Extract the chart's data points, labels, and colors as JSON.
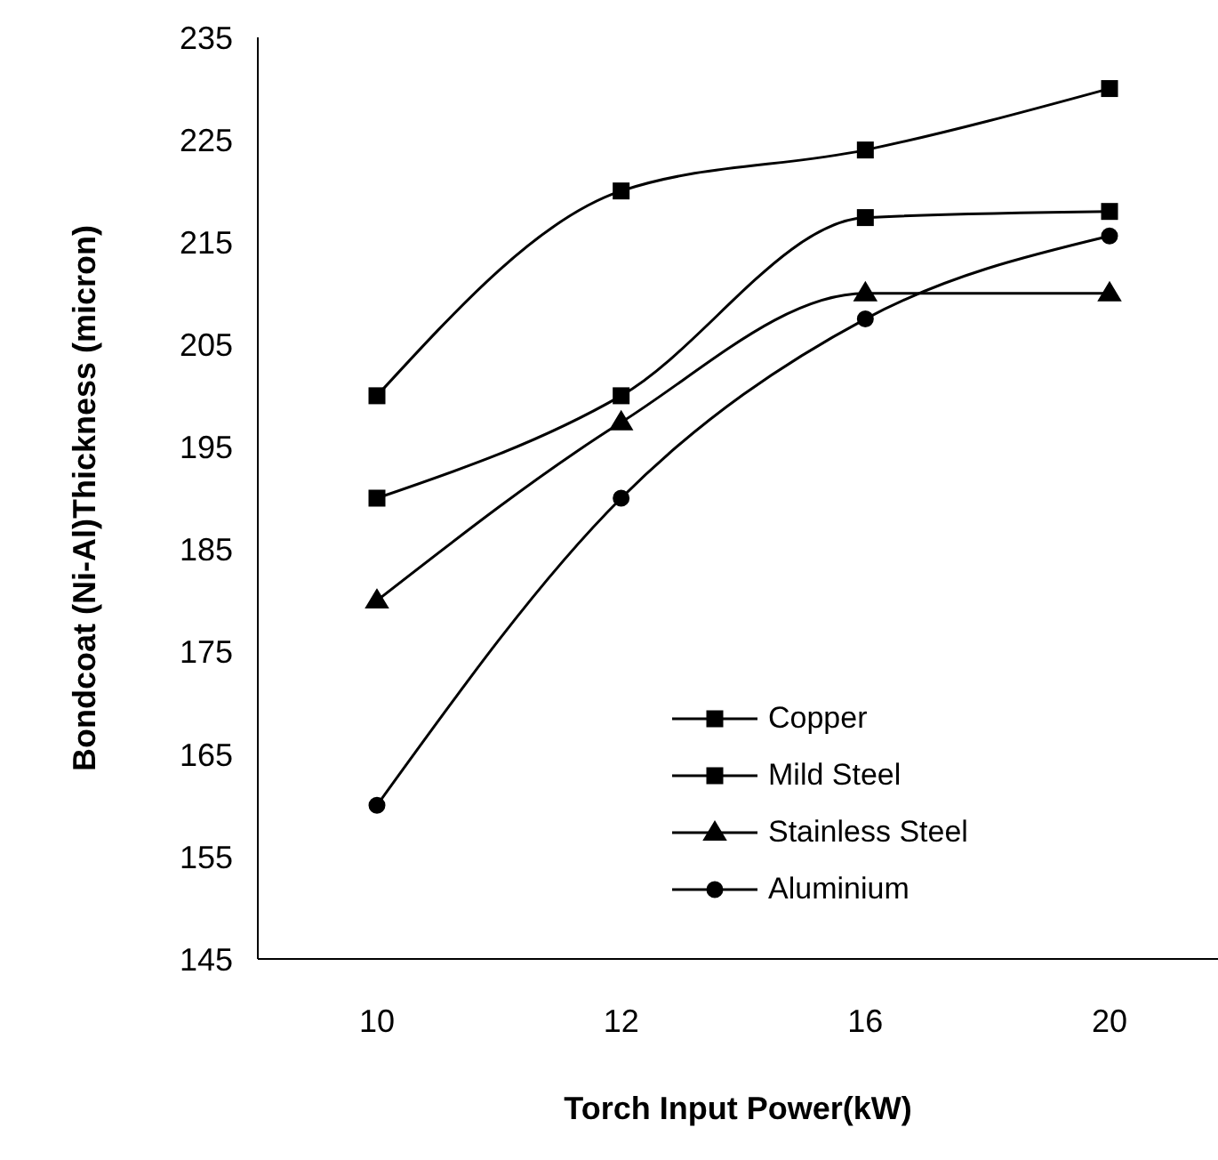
{
  "chart_data": {
    "type": "line",
    "xlabel": "Torch Input Power(kW)",
    "ylabel": "Bondcoat (Ni-Al)Thickness (micron)",
    "categories": [
      "10",
      "12",
      "16",
      "20"
    ],
    "ylim": [
      145,
      235
    ],
    "yticks": [
      145,
      155,
      165,
      175,
      185,
      195,
      205,
      215,
      225,
      235
    ],
    "grid": false,
    "legend": "bottom right",
    "line_style": "solid",
    "series": [
      {
        "name": "Copper",
        "color": "#000000",
        "marker": "square",
        "values": [
          200,
          220,
          224,
          230
        ]
      },
      {
        "name": "Mild Steel",
        "color": "#000000",
        "marker": "square",
        "values": [
          190,
          200,
          217.4,
          218
        ]
      },
      {
        "name": "Stainless Steel",
        "color": "#000000",
        "marker": "triangle",
        "values": [
          180,
          197.4,
          210,
          210
        ]
      },
      {
        "name": "Aluminium",
        "color": "#000000",
        "marker": "circle",
        "values": [
          160,
          190,
          207.5,
          215.6
        ]
      }
    ]
  }
}
